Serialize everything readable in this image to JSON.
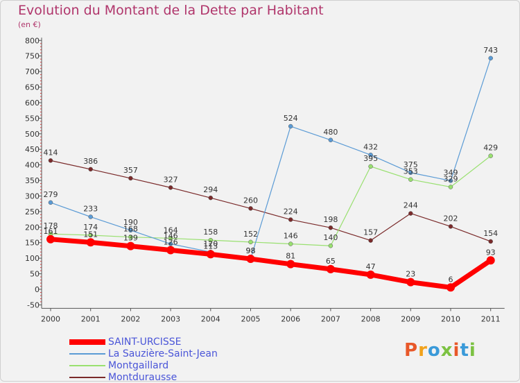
{
  "title": "Evolution du Montant de la Dette par Habitant",
  "subtitle": "(en €)",
  "logo": {
    "text": "Proxiti",
    "colors": [
      "#e8582a",
      "#f1a21c",
      "#3a9ad9",
      "#7cc242",
      "#e8582a",
      "#3a9ad9",
      "#7cc242"
    ]
  },
  "chart_data": {
    "type": "line",
    "categories": [
      "2000",
      "2001",
      "2002",
      "2003",
      "2004",
      "2005",
      "2006",
      "2007",
      "2008",
      "2009",
      "2010",
      "2011"
    ],
    "ylim": [
      -50,
      800
    ],
    "yticks": [
      -50,
      0,
      50,
      100,
      150,
      200,
      250,
      300,
      350,
      400,
      450,
      500,
      550,
      600,
      650,
      700,
      750,
      800
    ],
    "ytick_labels": [
      "-50",
      "0",
      "50",
      "100",
      "150",
      "200",
      "250",
      "300",
      "350",
      "400",
      "450",
      "500",
      "550",
      "600",
      "650",
      "700",
      "750",
      "800"
    ],
    "grid": false,
    "legend_position": "bottom-left",
    "series": [
      {
        "name": "Montdurausse",
        "color": "#7a2a2a",
        "width": 1.2,
        "values": [
          414,
          386,
          357,
          327,
          294,
          260,
          224,
          198,
          157,
          244,
          202,
          154
        ]
      },
      {
        "name": "Montgaillard",
        "color": "#99e070",
        "width": 1.2,
        "values": [
          178,
          174,
          168,
          164,
          158,
          152,
          146,
          140,
          395,
          353,
          329,
          429
        ]
      },
      {
        "name": "La Sauzière-Saint-Jean",
        "color": "#5b9bd5",
        "width": 1.2,
        "values": [
          279,
          233,
          190,
          146,
          120,
          98,
          524,
          480,
          432,
          375,
          349,
          743
        ]
      },
      {
        "name": "SAINT-URCISSE",
        "color": "#ff0000",
        "width": 7,
        "values": [
          161,
          151,
          139,
          126,
          113,
          98,
          81,
          65,
          47,
          23,
          6,
          93
        ]
      }
    ],
    "data_labels": [
      [
        "161",
        "151",
        "139",
        "126",
        "113",
        "98",
        "81",
        "65",
        "47",
        "23",
        "6",
        "93"
      ],
      [
        "279",
        "233",
        "190",
        "146",
        "120",
        "98",
        "524",
        "480",
        "432",
        "375",
        "349",
        "743"
      ],
      [
        "178",
        "174",
        "168",
        "164",
        "158",
        "152",
        "146",
        "140",
        "395",
        "353",
        "329",
        "429"
      ],
      [
        "414",
        "386",
        "357",
        "327",
        "294",
        "260",
        "224",
        "198",
        "157",
        "244",
        "202",
        "154"
      ]
    ],
    "legend": [
      "SAINT-URCISSE",
      "La Sauzière-Saint-Jean",
      "Montgaillard",
      "Montdurausse"
    ]
  }
}
